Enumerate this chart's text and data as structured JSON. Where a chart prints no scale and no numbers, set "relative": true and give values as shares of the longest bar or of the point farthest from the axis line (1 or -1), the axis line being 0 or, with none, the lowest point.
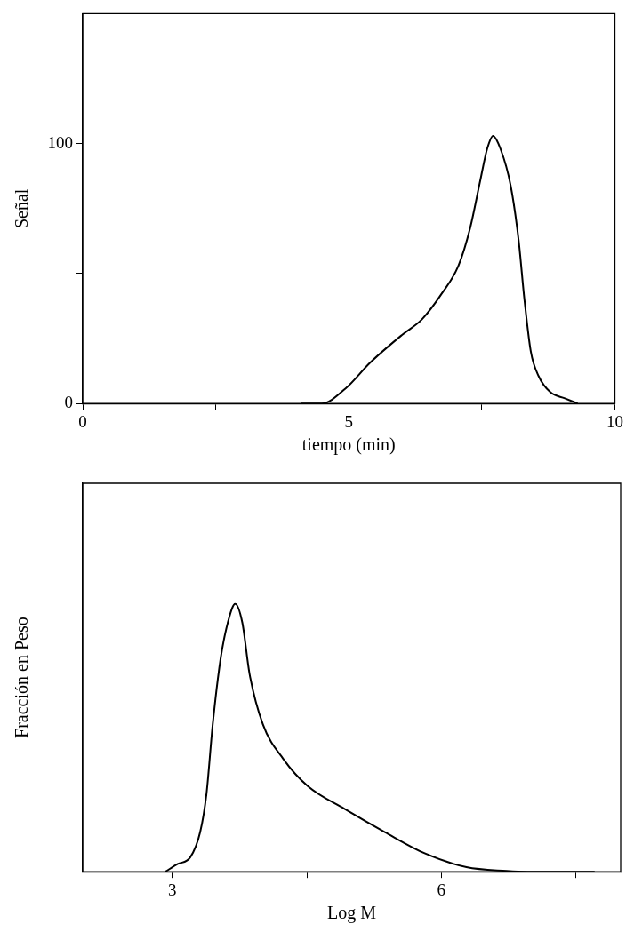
{
  "chart_data": [
    {
      "type": "line",
      "xlabel": "tiempo (min)",
      "ylabel": "Señal",
      "marker": "none",
      "xlim": [
        0,
        10
      ],
      "xticks": [
        0,
        {
          "value": 2.5,
          "label": null
        },
        5,
        {
          "value": 7.5,
          "label": null
        },
        10
      ],
      "ylim": [
        0,
        150
      ],
      "yticks": [
        0,
        {
          "value": 50,
          "label": null
        },
        100
      ],
      "series": [
        {
          "color": "#000000",
          "x": [
            4.11,
            4.49,
            4.94,
            5.4,
            6.0,
            6.38,
            6.75,
            7.06,
            7.28,
            7.47,
            7.6,
            7.71,
            7.85,
            8.04,
            8.19,
            8.3,
            8.42,
            8.57,
            8.79,
            9.06,
            9.3
          ],
          "values": [
            0,
            0,
            5.8,
            15.7,
            26.4,
            32.5,
            42.4,
            53,
            67.5,
            85.8,
            98,
            103,
            98,
            84,
            63,
            40,
            20,
            10.4,
            4.3,
            2,
            0
          ]
        }
      ]
    },
    {
      "type": "line",
      "xlabel": "Log M",
      "ylabel": "Fracción en Peso",
      "marker": "none",
      "relative": true,
      "xlim": [
        2,
        8
      ],
      "xticks": [
        3,
        {
          "value": 4.5,
          "label": null
        },
        6,
        {
          "value": 7.5,
          "label": null
        }
      ],
      "series": [
        {
          "color": "#000000",
          "x": [
            2.92,
            3.06,
            3.2,
            3.31,
            3.38,
            3.45,
            3.54,
            3.63,
            3.7,
            3.78,
            3.86,
            4.01,
            4.24,
            4.51,
            4.92,
            5.37,
            5.82,
            6.28,
            6.73,
            6.96,
            7.71
          ],
          "values": [
            0,
            0.029,
            0.054,
            0.148,
            0.29,
            0.55,
            0.8,
            0.945,
            1,
            0.93,
            0.74,
            0.55,
            0.42,
            0.32,
            0.235,
            0.148,
            0.068,
            0.017,
            0.003,
            0,
            0
          ]
        }
      ]
    }
  ]
}
